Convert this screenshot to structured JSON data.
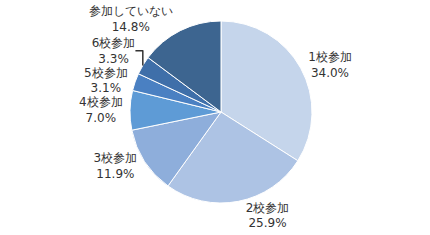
{
  "chart_data": {
    "type": "pie",
    "categories": [
      "1校参加",
      "2校参加",
      "3校参加",
      "4校参加",
      "5校参加",
      "6校参加",
      "参加していない"
    ],
    "values": [
      34.0,
      25.9,
      11.9,
      7.0,
      3.1,
      3.3,
      14.8
    ],
    "value_labels": [
      "34.0%",
      "25.9%",
      "11.9%",
      "7.0%",
      "3.1%",
      "3.3%",
      "14.8%"
    ],
    "colors": [
      "#c5d5eb",
      "#adc3e4",
      "#8eaedb",
      "#5e9bd6",
      "#4a80c2",
      "#3f6fa9",
      "#3d6590"
    ],
    "data_labels": true
  }
}
